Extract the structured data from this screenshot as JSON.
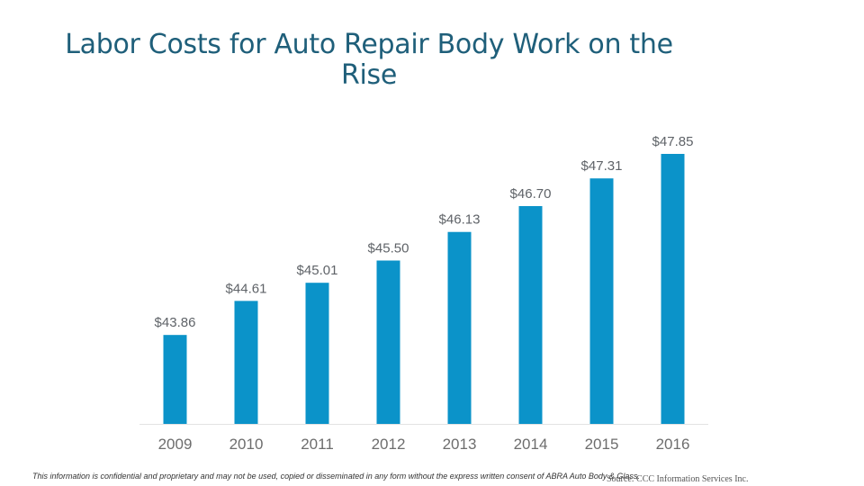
{
  "slide": {
    "title": "Labor Costs for Auto Repair Body Work on the Rise",
    "footnote": "This information is confidential and proprietary and may not be used, copied or disseminated in any form without the express written consent of ABRA Auto Body & Glass.",
    "source": "Source: CCC Information Services Inc."
  },
  "colors": {
    "bar": "#0b93c9",
    "title": "#1f5f7a",
    "axis_text": "#6d6d6d",
    "value_label": "#5f6368",
    "axis_line": "#e3e3e3"
  },
  "chart_data": {
    "type": "bar",
    "title": "Labor Costs for Auto Repair Body Work on the Rise",
    "xlabel": "",
    "ylabel": "",
    "categories": [
      "2009",
      "2010",
      "2011",
      "2012",
      "2013",
      "2014",
      "2015",
      "2016"
    ],
    "values": [
      43.86,
      44.61,
      45.01,
      45.5,
      46.13,
      46.7,
      47.31,
      47.85
    ],
    "value_labels": [
      "$43.86",
      "$44.61",
      "$45.01",
      "$45.50",
      "$46.13",
      "$46.70",
      "$47.31",
      "$47.85"
    ],
    "ylim": [
      41.9,
      47.85
    ],
    "grid": false,
    "legend": "none"
  }
}
